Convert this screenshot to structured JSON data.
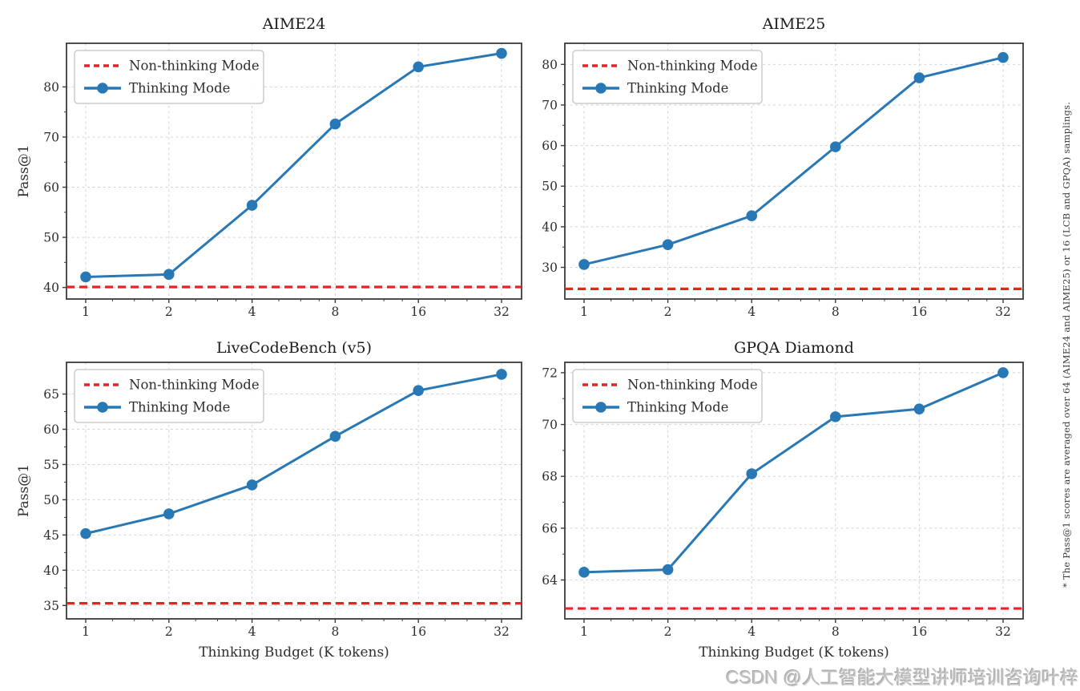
{
  "colors": {
    "thinking": "#2878b5",
    "non_thinking": "#ee2024",
    "grid": "#d3d3d3",
    "spine": "#3b3b3b",
    "text": "#2e2e2e",
    "watermark": "#c0c0c0"
  },
  "legend": {
    "non_thinking_label": "Non-thinking Mode",
    "thinking_label": "Thinking Mode"
  },
  "side_note": "* The Pass@1 scores are averaged over 64 (AIME24 and AIME25) or 16 (LCB and GPQA) samplings.",
  "watermark": "CSDN @人工智能大模型讲师培训咨询叶梓",
  "chart_data": [
    {
      "type": "line",
      "title": "AIME24",
      "xlabel": "",
      "ylabel": "Pass@1",
      "x": [
        1,
        2,
        4,
        8,
        16,
        32
      ],
      "x_scale": "log2",
      "xtick_labels": [
        "1",
        "2",
        "4",
        "8",
        "16",
        "32"
      ],
      "yticks": [
        40,
        50,
        60,
        70,
        80
      ],
      "ylim": [
        37.7,
        88.7
      ],
      "grid": true,
      "legend_position": "upper left",
      "series": [
        {
          "name": "Thinking Mode",
          "style": "solid-circle",
          "values": [
            42.1,
            42.6,
            56.4,
            72.6,
            84.0,
            86.7
          ]
        },
        {
          "name": "Non-thinking Mode",
          "style": "dashed-horizontal",
          "constant": 40.1
        }
      ]
    },
    {
      "type": "line",
      "title": "AIME25",
      "xlabel": "",
      "ylabel": "",
      "x": [
        1,
        2,
        4,
        8,
        16,
        32
      ],
      "x_scale": "log2",
      "xtick_labels": [
        "1",
        "2",
        "4",
        "8",
        "16",
        "32"
      ],
      "yticks": [
        30,
        40,
        50,
        60,
        70,
        80
      ],
      "ylim": [
        22.2,
        85.2
      ],
      "grid": true,
      "legend_position": "upper left",
      "series": [
        {
          "name": "Thinking Mode",
          "style": "solid-circle",
          "values": [
            30.7,
            35.6,
            42.7,
            59.7,
            76.7,
            81.7
          ]
        },
        {
          "name": "Non-thinking Mode",
          "style": "dashed-horizontal",
          "constant": 24.7
        }
      ]
    },
    {
      "type": "line",
      "title": "LiveCodeBench (v5)",
      "xlabel": "Thinking Budget (K tokens)",
      "ylabel": "Pass@1",
      "x": [
        1,
        2,
        4,
        8,
        16,
        32
      ],
      "x_scale": "log2",
      "xtick_labels": [
        "1",
        "2",
        "4",
        "8",
        "16",
        "32"
      ],
      "yticks": [
        35,
        40,
        45,
        50,
        55,
        60,
        65
      ],
      "ylim": [
        33.1,
        69.5
      ],
      "grid": true,
      "legend_position": "upper left",
      "series": [
        {
          "name": "Thinking Mode",
          "style": "solid-circle",
          "values": [
            45.2,
            48.0,
            52.1,
            59.0,
            65.5,
            67.8
          ]
        },
        {
          "name": "Non-thinking Mode",
          "style": "dashed-horizontal",
          "constant": 35.3
        }
      ]
    },
    {
      "type": "line",
      "title": "GPQA Diamond",
      "xlabel": "Thinking Budget (K tokens)",
      "ylabel": "",
      "x": [
        1,
        2,
        4,
        8,
        16,
        32
      ],
      "x_scale": "log2",
      "xtick_labels": [
        "1",
        "2",
        "4",
        "8",
        "16",
        "32"
      ],
      "yticks": [
        64,
        66,
        68,
        70,
        72
      ],
      "ylim": [
        62.5,
        72.4
      ],
      "grid": true,
      "legend_position": "upper left",
      "series": [
        {
          "name": "Thinking Mode",
          "style": "solid-circle",
          "values": [
            64.3,
            64.4,
            68.1,
            70.3,
            70.6,
            72.0
          ]
        },
        {
          "name": "Non-thinking Mode",
          "style": "dashed-horizontal",
          "constant": 62.9
        }
      ]
    }
  ]
}
